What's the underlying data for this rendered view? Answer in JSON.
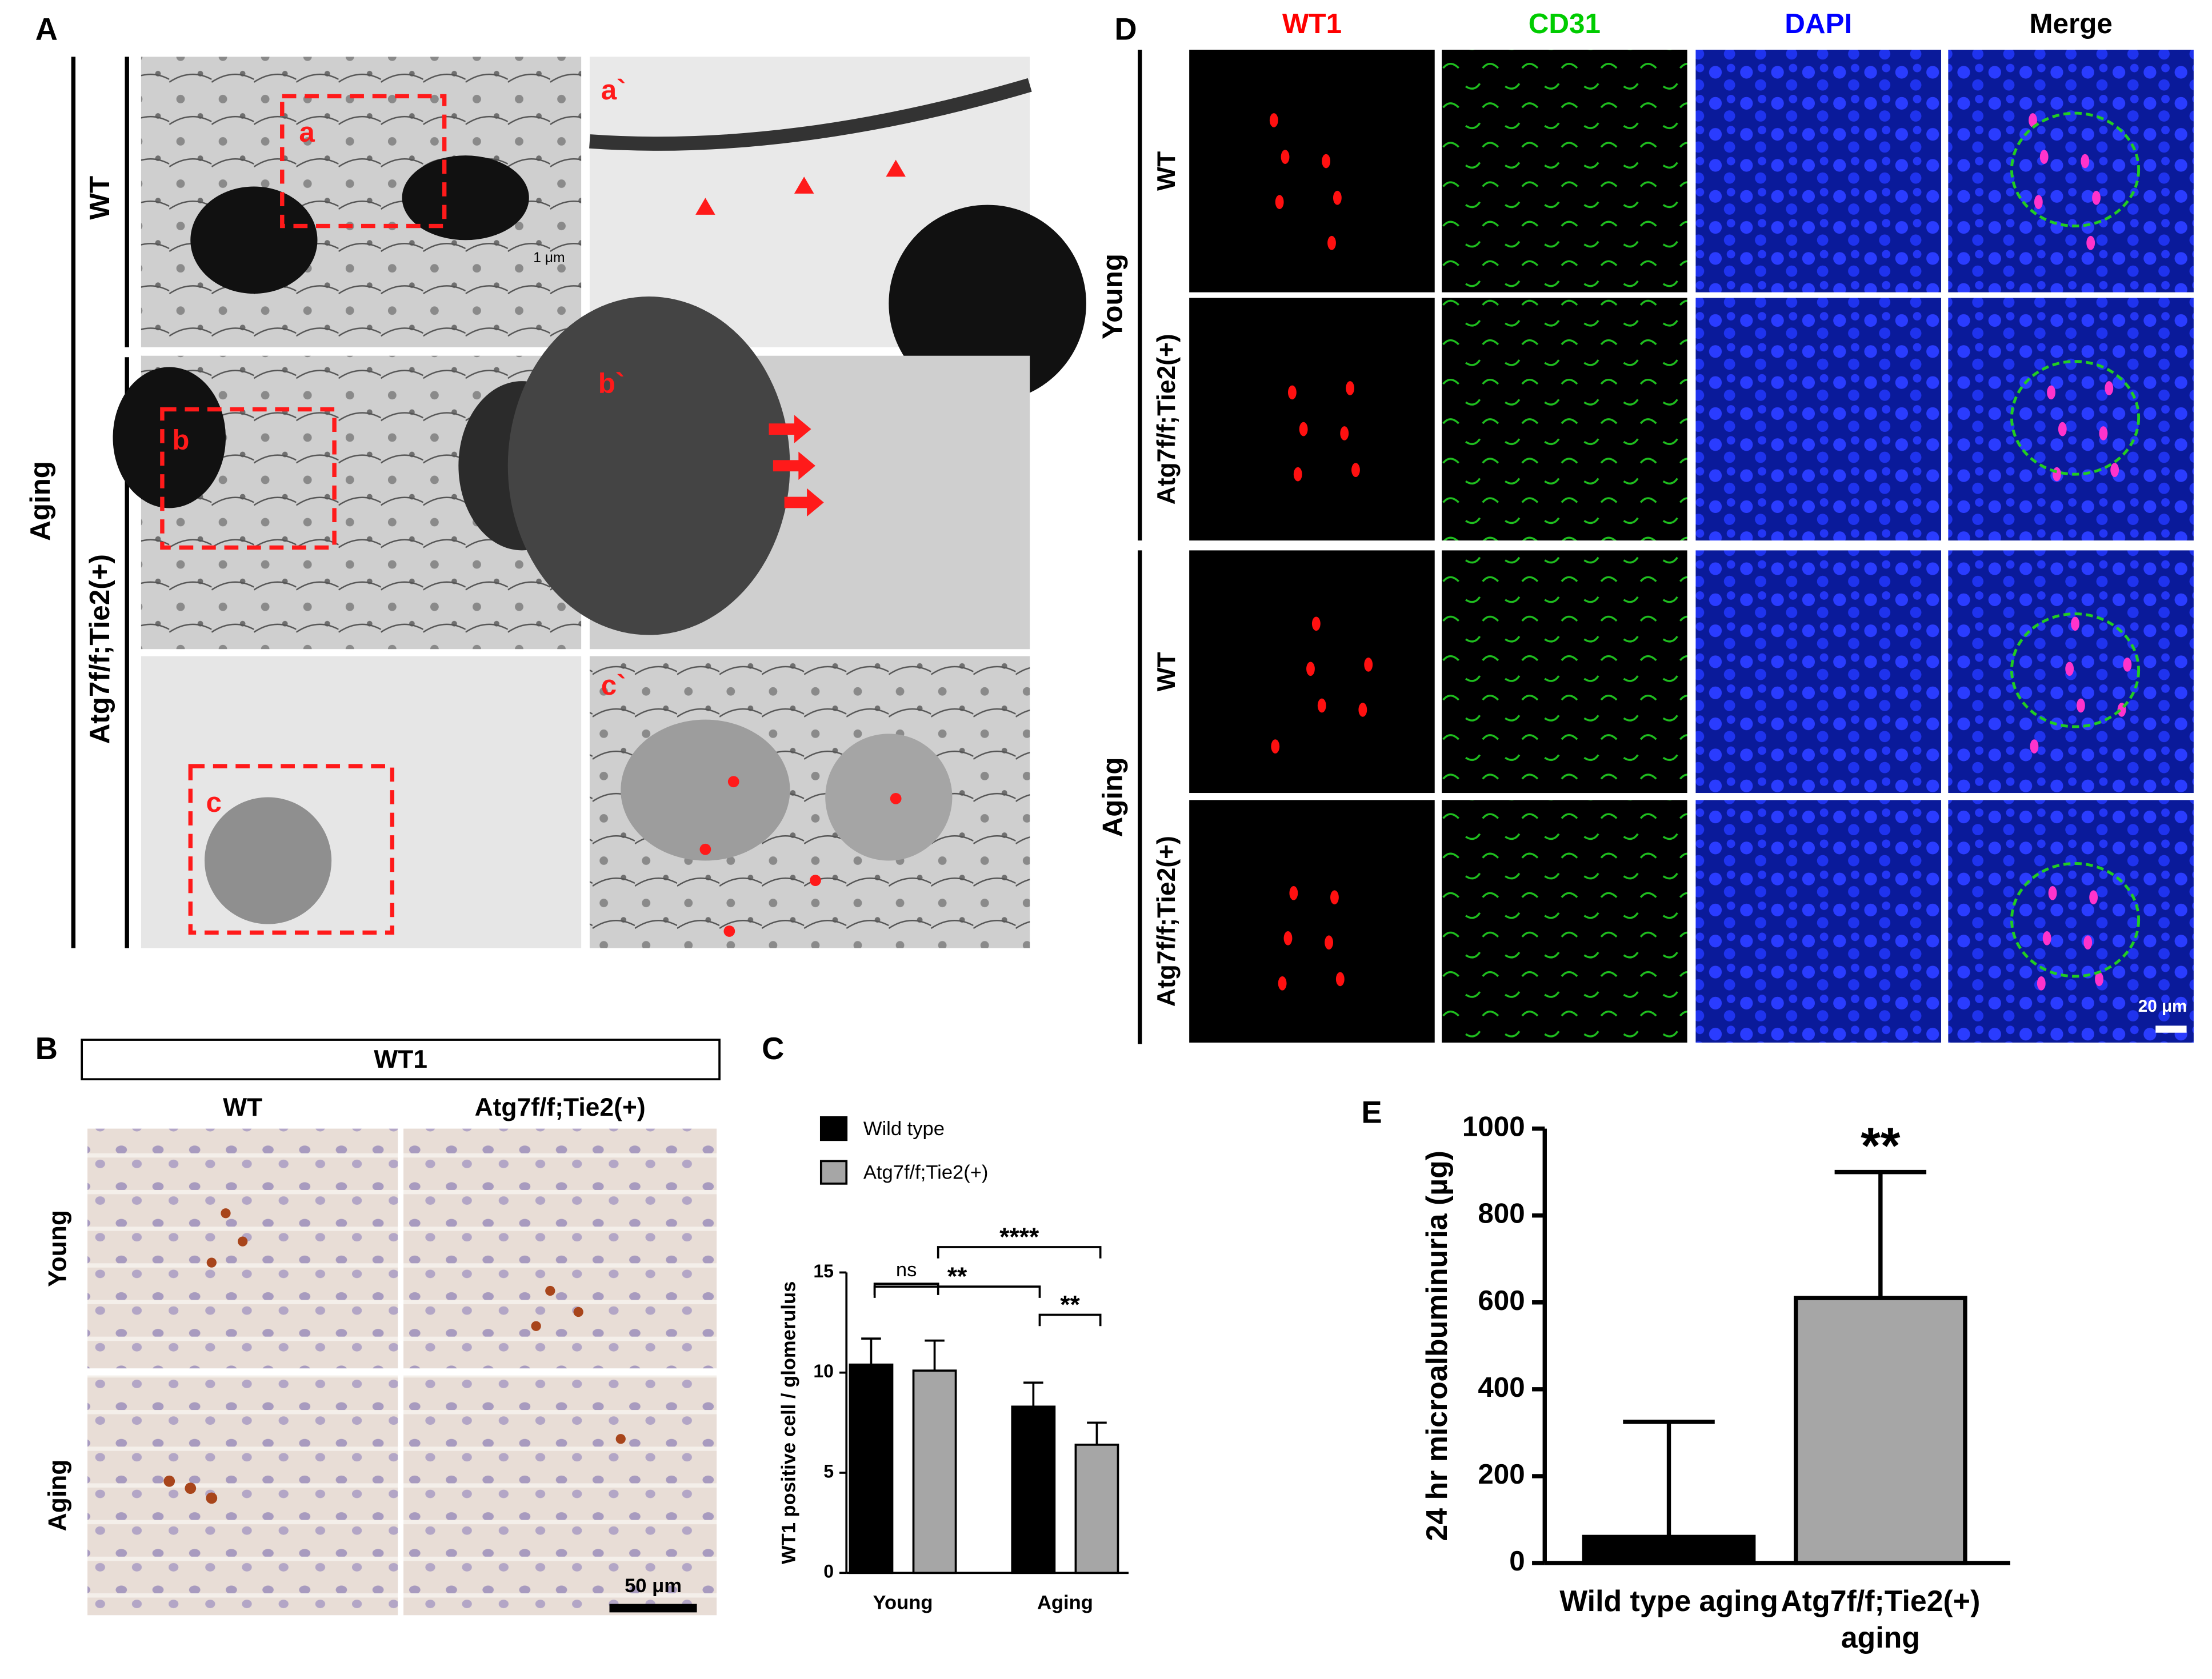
{
  "panel_a": {
    "letter": "A",
    "group": "Aging",
    "rows": [
      "WT",
      "Atg7f/f;Tie2(+)"
    ],
    "insets": [
      "a",
      "a`",
      "b",
      "b`",
      "c",
      "c`"
    ],
    "scale": "1 μm"
  },
  "panel_b": {
    "letter": "B",
    "stain": "WT1",
    "columns": [
      "WT",
      "Atg7f/f;Tie2(+)"
    ],
    "rows": [
      "Young",
      "Aging"
    ],
    "scale": "50 μm"
  },
  "panel_d": {
    "letter": "D",
    "columns": [
      "WT1",
      "CD31",
      "DAPI",
      "Merge"
    ],
    "column_colors": [
      "#ff0000",
      "#00cc00",
      "#0000ff",
      "#000000"
    ],
    "groups": [
      "Young",
      "Aging"
    ],
    "rows": [
      "WT",
      "Atg7f/f;Tie2(+)",
      "WT",
      "Atg7f/f;Tie2(+)"
    ],
    "scale": "20 μm"
  },
  "chart_data": [
    {
      "type": "bar",
      "panel": "C",
      "y_label": "WT1 positive cell / glomerulus",
      "categories": [
        "Young",
        "Aging"
      ],
      "series": [
        {
          "name": "Wild type",
          "color": "#000000",
          "values": [
            10.4,
            8.3
          ],
          "errors": [
            1.3,
            1.2
          ]
        },
        {
          "name": "Atg7f/f;Tie2(+)",
          "color": "#a6a6a6",
          "values": [
            10.1,
            6.4
          ],
          "errors": [
            1.5,
            1.1
          ]
        }
      ],
      "ylim": [
        0,
        15
      ],
      "yticks": [
        0,
        5,
        10,
        15
      ],
      "annotations": [
        "ns",
        "**",
        "****",
        "**"
      ]
    },
    {
      "type": "bar",
      "panel": "E",
      "y_label": "24 hr microalbuminuria (µg)",
      "categories": [
        "Wild type aging",
        "Atg7f/f;Tie2(+) aging"
      ],
      "values": [
        60,
        610
      ],
      "errors": [
        265,
        290
      ],
      "colors": [
        "#000000",
        "#a6a6a6"
      ],
      "ylim": [
        0,
        1000
      ],
      "yticks": [
        0,
        200,
        400,
        600,
        800,
        1000
      ],
      "annotations": [
        "**"
      ]
    }
  ]
}
